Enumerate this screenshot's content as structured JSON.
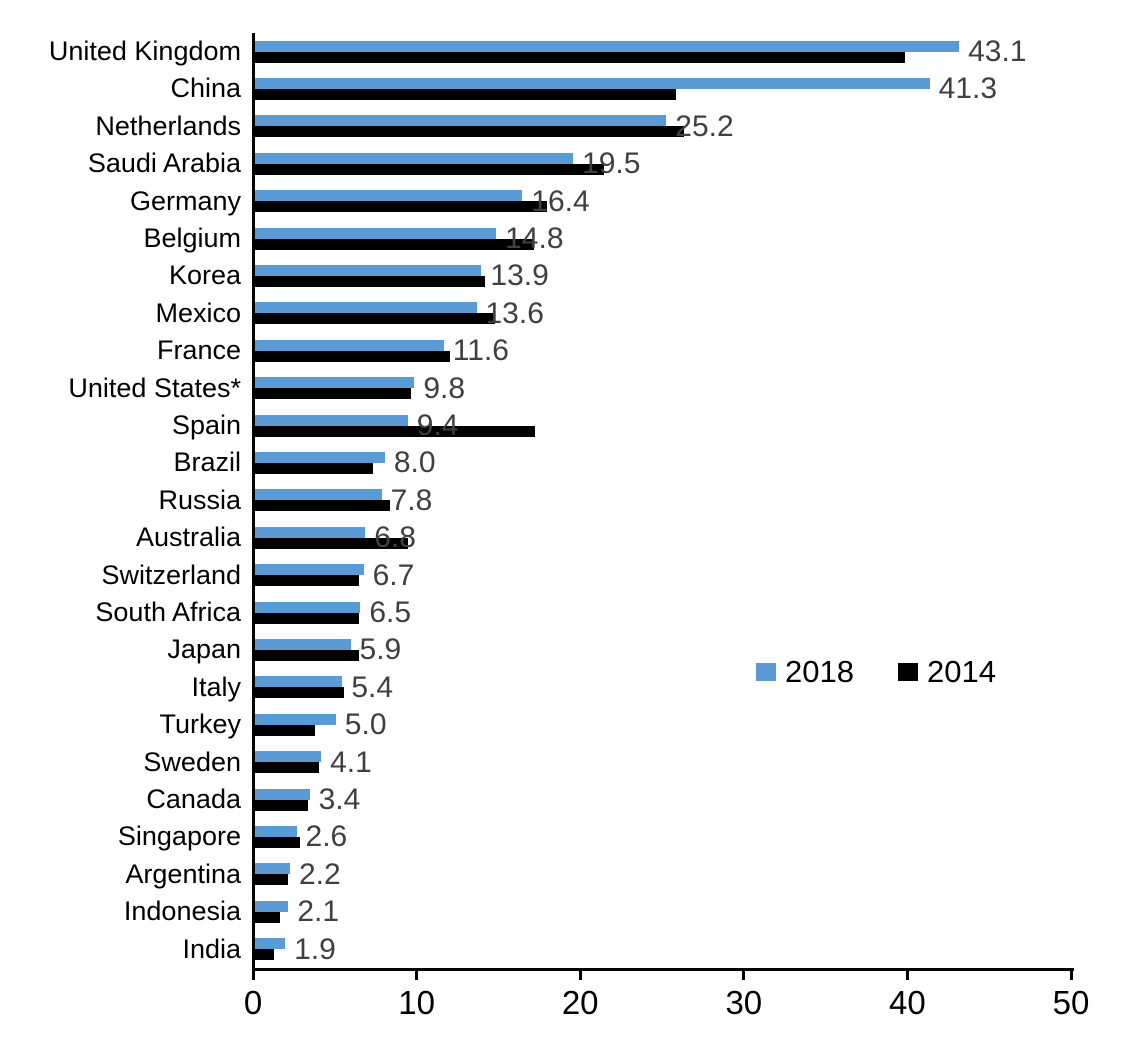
{
  "chart_data": {
    "type": "bar",
    "orientation": "horizontal",
    "title": "",
    "xlabel": "",
    "ylabel": "",
    "categories": [
      "United Kingdom",
      "China",
      "Netherlands",
      "Saudi Arabia",
      "Germany",
      "Belgium",
      "Korea",
      "Mexico",
      "France",
      "United States*",
      "Spain",
      "Brazil",
      "Russia",
      "Australia",
      "Switzerland",
      "South Africa",
      "Japan",
      "Italy",
      "Turkey",
      "Sweden",
      "Canada",
      "Singapore",
      "Argentina",
      "Indonesia",
      "India"
    ],
    "series": [
      {
        "name": "2018",
        "color": "#5B9BD5",
        "values": [
          43.1,
          41.3,
          25.2,
          19.5,
          16.4,
          14.8,
          13.9,
          13.6,
          11.6,
          9.8,
          9.4,
          8.0,
          7.8,
          6.8,
          6.7,
          6.5,
          5.9,
          5.4,
          5.0,
          4.1,
          3.4,
          2.6,
          2.2,
          2.1,
          1.9
        ]
      },
      {
        "name": "2014",
        "color": "#000000",
        "values": [
          39.8,
          25.8,
          26.3,
          21.4,
          17.9,
          17.1,
          14.1,
          14.7,
          12.0,
          9.6,
          17.2,
          7.3,
          8.3,
          9.4,
          6.4,
          6.4,
          6.4,
          5.5,
          3.7,
          4.0,
          3.3,
          2.8,
          2.1,
          1.6,
          1.2
        ]
      }
    ],
    "value_labels": {
      "labeled_series": "2018",
      "decimals": 1,
      "color": "#404040"
    },
    "xlim": [
      0,
      50
    ],
    "x_ticks": [
      0,
      10,
      20,
      30,
      40,
      50
    ],
    "grid": false,
    "legend": {
      "entries": [
        "2018",
        "2014"
      ],
      "position": "middle-right"
    }
  }
}
